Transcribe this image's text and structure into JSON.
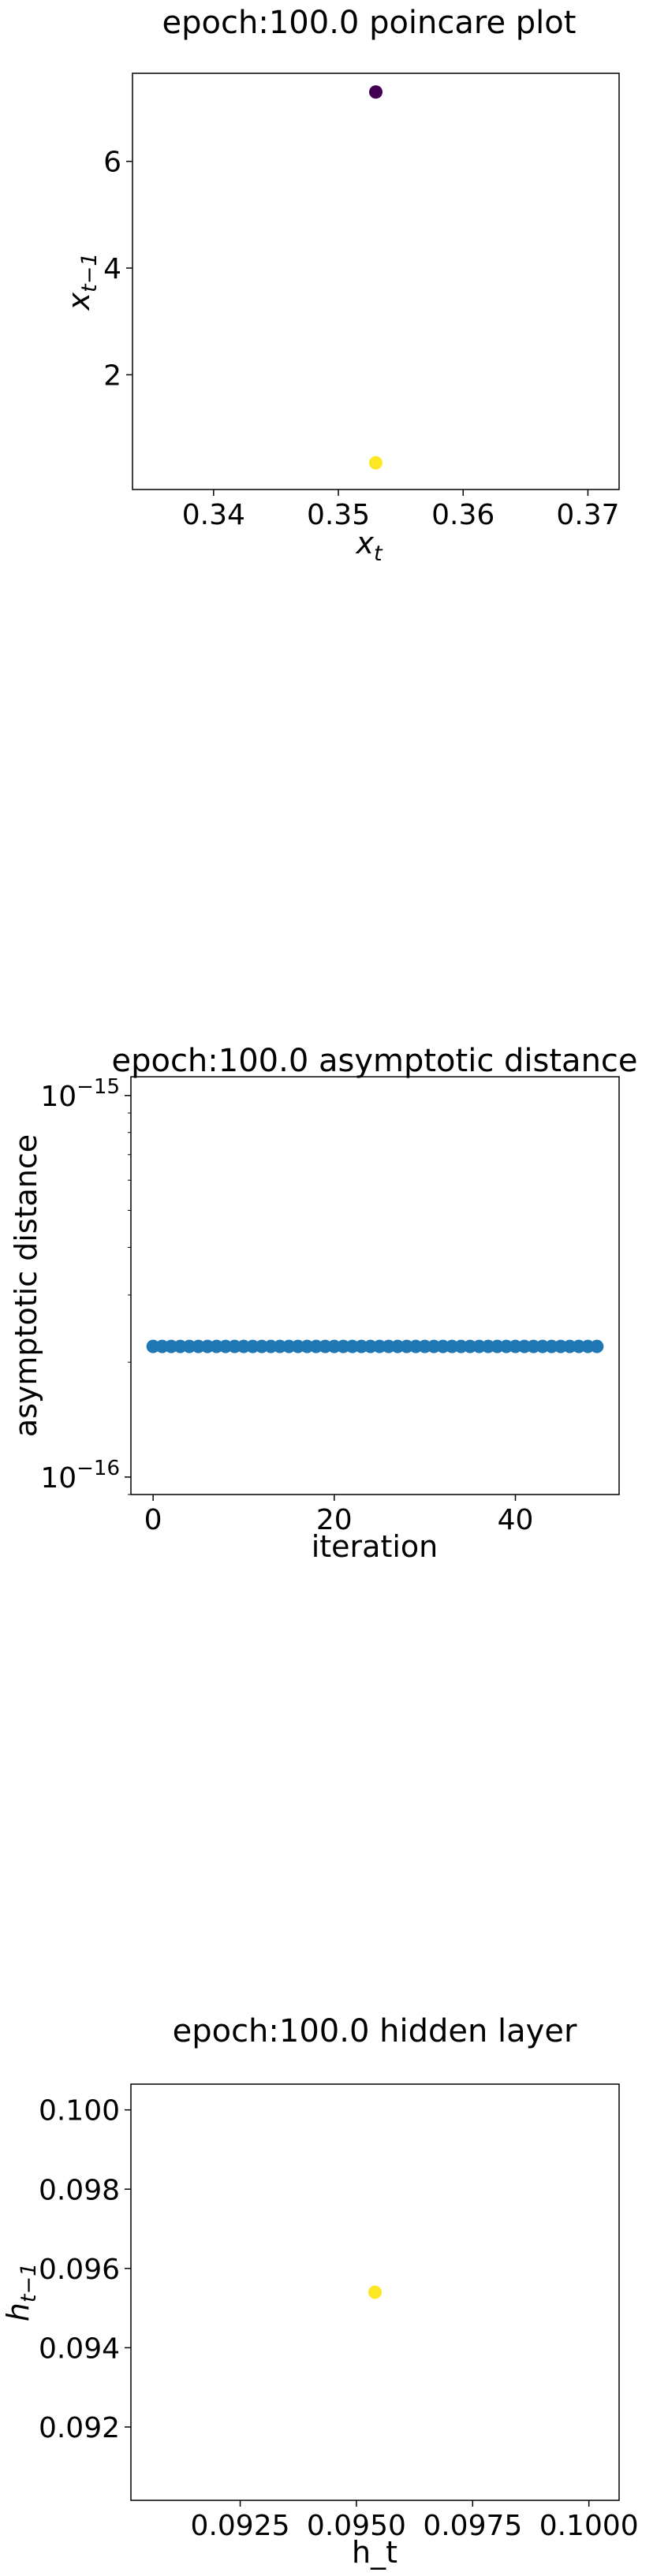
{
  "chart_data": [
    {
      "type": "scatter",
      "title": "epoch:100.0 poincare plot",
      "xlabel": "x_t",
      "ylabel": "x_{t-1}",
      "xlim": [
        0.3335,
        0.3725
      ],
      "ylim": [
        -0.15,
        7.65
      ],
      "x_scale": "linear",
      "y_scale": "linear",
      "xticks": [
        0.34,
        0.35,
        0.36,
        0.37
      ],
      "xtick_labels": [
        "0.34",
        "0.35",
        "0.36",
        "0.37"
      ],
      "yticks": [
        2,
        4,
        6
      ],
      "ytick_labels": [
        "2",
        "4",
        "6"
      ],
      "grid": false,
      "points": [
        {
          "x": 0.353,
          "y": 7.3,
          "color": "#440154"
        },
        {
          "x": 0.353,
          "y": 0.35,
          "color": "#fde725"
        }
      ]
    },
    {
      "type": "scatter",
      "title": "epoch:100.0 asymptotic distance",
      "xlabel": "iteration",
      "ylabel": "asymptotic distance",
      "xlim": [
        -2.45,
        51.45
      ],
      "ylim": [
        9e-17,
        1.12e-15
      ],
      "x_scale": "linear",
      "y_scale": "log",
      "xticks": [
        0,
        20,
        40
      ],
      "xtick_labels": [
        "0",
        "20",
        "40"
      ],
      "yticks": [
        1e-16,
        1e-15
      ],
      "ytick_labels": [
        {
          "base": "10",
          "exp": "−16"
        },
        {
          "base": "10",
          "exp": "−15"
        }
      ],
      "grid": false,
      "marker_color": "#1f77b4",
      "series": [
        {
          "x": [
            0,
            1,
            2,
            3,
            4,
            5,
            6,
            7,
            8,
            9,
            10,
            11,
            12,
            13,
            14,
            15,
            16,
            17,
            18,
            19,
            20,
            21,
            22,
            23,
            24,
            25,
            26,
            27,
            28,
            29,
            30,
            31,
            32,
            33,
            34,
            35,
            36,
            37,
            38,
            39,
            40,
            41,
            42,
            43,
            44,
            45,
            46,
            47,
            48,
            49
          ],
          "values": [
            2.2e-16,
            2.2e-16,
            2.2e-16,
            2.2e-16,
            2.2e-16,
            2.2e-16,
            2.2e-16,
            2.2e-16,
            2.2e-16,
            2.2e-16,
            2.2e-16,
            2.2e-16,
            2.2e-16,
            2.2e-16,
            2.2e-16,
            2.2e-16,
            2.2e-16,
            2.2e-16,
            2.2e-16,
            2.2e-16,
            2.2e-16,
            2.2e-16,
            2.2e-16,
            2.2e-16,
            2.2e-16,
            2.2e-16,
            2.2e-16,
            2.2e-16,
            2.2e-16,
            2.2e-16,
            2.2e-16,
            2.2e-16,
            2.2e-16,
            2.2e-16,
            2.2e-16,
            2.2e-16,
            2.2e-16,
            2.2e-16,
            2.2e-16,
            2.2e-16,
            2.2e-16,
            2.2e-16,
            2.2e-16,
            2.2e-16,
            2.2e-16,
            2.2e-16,
            2.2e-16,
            2.2e-16,
            2.2e-16,
            2.2e-16
          ]
        }
      ]
    },
    {
      "type": "scatter",
      "title": "epoch:100.0 hidden layer",
      "xlabel": "h_t",
      "ylabel": "h_{t-1}",
      "xlim": [
        0.09015,
        0.10065
      ],
      "ylim": [
        0.09015,
        0.10065
      ],
      "x_scale": "linear",
      "y_scale": "linear",
      "xticks": [
        0.0925,
        0.095,
        0.0975,
        0.1
      ],
      "xtick_labels": [
        "0.0925",
        "0.0950",
        "0.0975",
        "0.1000"
      ],
      "yticks": [
        0.092,
        0.094,
        0.096,
        0.098,
        0.1
      ],
      "ytick_labels": [
        "0.092",
        "0.094",
        "0.096",
        "0.098",
        "0.100"
      ],
      "grid": false,
      "points": [
        {
          "x": 0.0954,
          "y": 0.0954,
          "color": "#fde725"
        }
      ]
    }
  ]
}
